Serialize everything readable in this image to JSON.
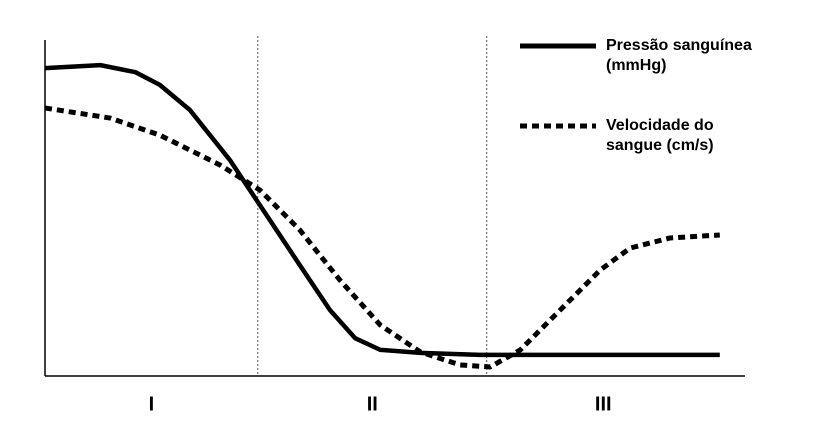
{
  "chart_data": {
    "type": "line",
    "xlim": [
      0,
      100
    ],
    "ylim": [
      0,
      100
    ],
    "series": [
      {
        "name": "Pressão sanguínea (mmHg)",
        "color": "#000000",
        "style": "solid",
        "x": [
          0,
          7.9,
          12.9,
          16.4,
          20.7,
          26.4,
          30.7,
          36.4,
          40.7,
          44.3,
          47.9,
          53.6,
          62.1,
          96.4
        ],
        "values": [
          91.6,
          92.5,
          90.4,
          86.6,
          79.1,
          64.2,
          50.7,
          32.8,
          19.4,
          11.0,
          7.5,
          6.6,
          6.0,
          6.0
        ]
      },
      {
        "name": "Velocidade do sangue (cm/s)",
        "color": "#000000",
        "style": "dotted",
        "x": [
          0,
          9.3,
          16.4,
          25,
          30.7,
          36.4,
          42.1,
          47.9,
          53.6,
          59.3,
          63.6,
          67.9,
          73.6,
          79.3,
          83.6,
          89.3,
          96.4
        ],
        "values": [
          79.7,
          76.7,
          71.6,
          62.7,
          55.2,
          43.3,
          28.4,
          14.9,
          6.9,
          3.0,
          2.4,
          7.5,
          19.4,
          31.3,
          37.9,
          40.9,
          41.8
        ]
      }
    ],
    "regions": [
      "I",
      "II",
      "III"
    ],
    "region_boundaries": [
      30.4,
      63.1
    ],
    "legend": "top-right"
  }
}
